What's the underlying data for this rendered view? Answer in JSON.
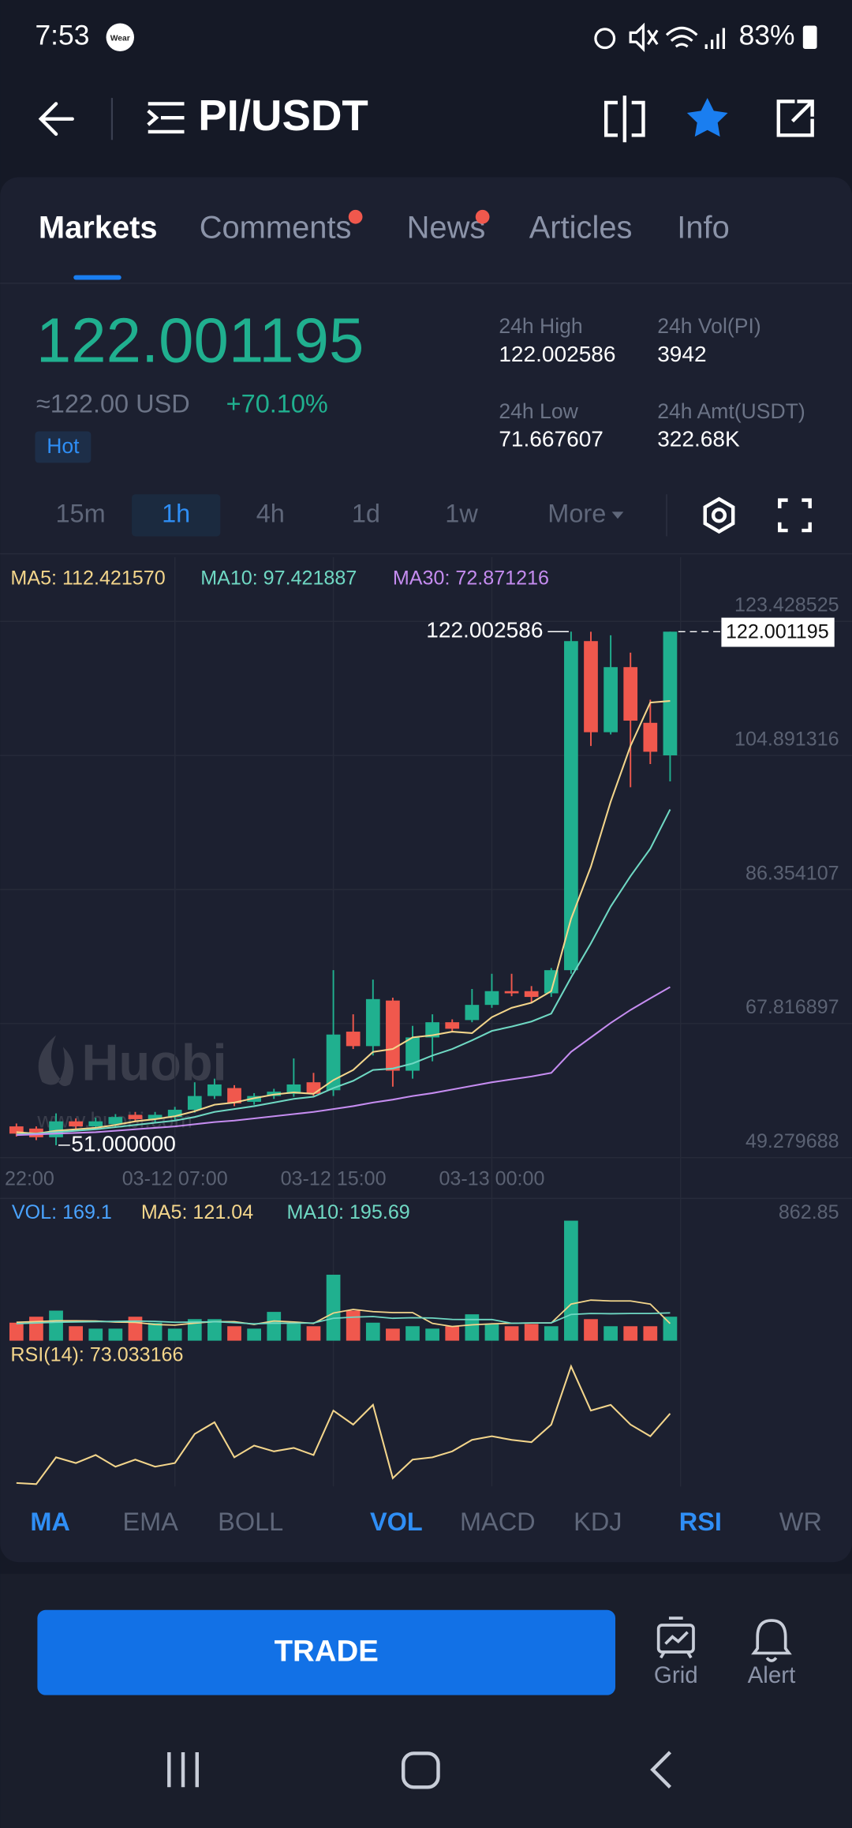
{
  "status_bar": {
    "time": "7:53",
    "badge": "Wear",
    "battery": "83%"
  },
  "header": {
    "pair": "PI/USDT"
  },
  "tabs": [
    "Markets",
    "Comments",
    "News",
    "Articles",
    "Info"
  ],
  "ticker": {
    "price": "122.001195",
    "usd": "≈122.00 USD",
    "change": "+70.10%",
    "tag": "Hot",
    "stats": [
      {
        "label": "24h High",
        "value": "122.002586"
      },
      {
        "label": "24h Vol(PI)",
        "value": "3942"
      },
      {
        "label": "24h Low",
        "value": "71.667607"
      },
      {
        "label": "24h Amt(USDT)",
        "value": "322.68K"
      }
    ]
  },
  "intervals": [
    "15m",
    "1h",
    "4h",
    "1d",
    "1w",
    "More"
  ],
  "watermark": {
    "brand": "Huobi",
    "site": "www.huobi.com"
  },
  "chart_data": {
    "type": "candlestick",
    "up_color": "#20b08f",
    "down_color": "#f0584d",
    "categories": [
      "22:00",
      null,
      null,
      null,
      null,
      null,
      null,
      null,
      "03-12 07:00",
      null,
      null,
      null,
      null,
      null,
      null,
      null,
      "03-12 15:00",
      null,
      null,
      null,
      null,
      null,
      null,
      null,
      "03-13 00:00",
      null,
      null,
      null,
      null,
      null,
      null,
      null,
      null,
      null
    ],
    "candles": {
      "open": [
        53.6,
        53.3,
        52.1,
        54.3,
        53.6,
        53.9,
        55.2,
        54.6,
        54.9,
        55.9,
        57.8,
        58.9,
        57.0,
        57.8,
        58.1,
        59.7,
        58.6,
        66.7,
        64.7,
        71.0,
        61.3,
        65.9,
        68.0,
        68.3,
        70.4,
        72.3,
        72.3,
        72.0,
        75.2,
        120.7,
        108.1,
        117.1,
        109.4,
        104.9
      ],
      "high": [
        54.0,
        53.6,
        55.4,
        54.7,
        54.8,
        55.3,
        55.6,
        55.6,
        56.3,
        59.7,
        60.2,
        59.3,
        58.2,
        58.8,
        63.0,
        61.0,
        75.2,
        69.1,
        73.9,
        71.4,
        67.5,
        69.1,
        68.4,
        72.6,
        74.7,
        74.7,
        73.0,
        75.5,
        122.002586,
        122.0,
        121.5,
        119.1,
        112.6,
        122.001195
      ],
      "low": [
        52.2,
        51.7,
        51.0,
        53.2,
        53.2,
        53.5,
        54.2,
        54.2,
        54.5,
        55.5,
        57.4,
        56.4,
        56.6,
        57.4,
        57.7,
        57.7,
        57.8,
        64.3,
        63.4,
        59.1,
        60.2,
        62.6,
        66.7,
        68.0,
        70.0,
        71.6,
        70.7,
        71.5,
        74.7,
        106.2,
        107.8,
        100.5,
        103.7,
        101.3
      ],
      "close": [
        52.6,
        52.1,
        54.3,
        53.6,
        54.3,
        54.9,
        54.6,
        55.2,
        55.9,
        57.8,
        59.4,
        56.8,
        57.8,
        58.4,
        59.4,
        58.1,
        66.3,
        64.7,
        71.2,
        61.3,
        65.9,
        68.0,
        67.1,
        70.4,
        72.3,
        72.0,
        71.5,
        75.2,
        120.7,
        108.1,
        117.1,
        109.7,
        105.4,
        122.001195
      ]
    },
    "low_value_label": "51.000000",
    "series": [
      {
        "name": "MA5",
        "legend": "MA5: 112.421570",
        "color": "#f3d58b",
        "values": [
          52.8,
          52.6,
          53.0,
          53.2,
          53.4,
          53.8,
          54.3,
          54.6,
          55.0,
          55.7,
          56.6,
          56.9,
          57.5,
          58.0,
          58.3,
          58.1,
          60.0,
          61.4,
          63.9,
          64.3,
          65.9,
          66.2,
          66.7,
          66.5,
          68.7,
          70.0,
          70.7,
          72.3,
          82.3,
          89.5,
          98.5,
          106.2,
          112.2,
          112.42157
        ]
      },
      {
        "name": "MA10",
        "legend": "MA10: 97.421887",
        "color": "#6fd8c3",
        "values": [
          52.5,
          52.6,
          52.8,
          53.0,
          53.2,
          53.5,
          53.8,
          54.1,
          54.4,
          54.9,
          55.6,
          56.0,
          56.4,
          56.9,
          57.4,
          57.7,
          58.9,
          59.9,
          61.4,
          61.6,
          62.3,
          63.4,
          64.3,
          65.5,
          66.8,
          67.4,
          68.1,
          69.2,
          74.2,
          78.9,
          84.0,
          88.2,
          92.0,
          97.421887
        ]
      },
      {
        "name": "MA30",
        "legend": "MA30: 72.871216",
        "color": "#c58cf0",
        "values": [
          52.4,
          52.5,
          52.6,
          52.7,
          52.8,
          53.0,
          53.2,
          53.4,
          53.6,
          53.9,
          54.2,
          54.4,
          54.7,
          55.0,
          55.3,
          55.6,
          56.0,
          56.4,
          56.9,
          57.3,
          57.8,
          58.2,
          58.7,
          59.2,
          59.7,
          60.1,
          60.5,
          61.0,
          63.9,
          65.9,
          67.9,
          69.7,
          71.3,
          72.871216
        ]
      }
    ],
    "ylim": [
      48.15,
      132.29
    ],
    "yticks": [
      123.428525,
      104.891316,
      86.354107,
      67.816897,
      49.279688
    ],
    "grid": true,
    "volume": {
      "legend": [
        "VOL: 169.1",
        "MA5: 121.04",
        "MA10: 195.69"
      ],
      "legend_colors": [
        "#4aa3ff",
        "#f3d58b",
        "#6fd8c3"
      ],
      "values": [
        127,
        169,
        212,
        102,
        85,
        85,
        169,
        127,
        85,
        152,
        152,
        102,
        85,
        203,
        118,
        102,
        465,
        212,
        127,
        85,
        102,
        85,
        102,
        186,
        118,
        102,
        118,
        102,
        846,
        152,
        102,
        102,
        102,
        169.1
      ],
      "ma5": [
        130,
        135,
        140,
        140,
        139,
        131,
        129,
        114,
        110,
        124,
        134,
        134,
        115,
        139,
        132,
        122,
        195,
        220,
        205,
        198,
        198,
        122,
        100,
        112,
        119,
        123,
        125,
        125,
        258,
        286,
        280,
        280,
        258,
        121.04
      ],
      "ma10": [
        120,
        125,
        130,
        132,
        134,
        136,
        138,
        136,
        130,
        131,
        134,
        127,
        119,
        124,
        123,
        125,
        158,
        166,
        170,
        158,
        162,
        160,
        150,
        149,
        149,
        123,
        125,
        126,
        185,
        192,
        190,
        192,
        192,
        195.69
      ],
      "ylim": [
        0,
        862.85
      ],
      "yticks": [
        862.85
      ]
    },
    "rsi": {
      "legend": "RSI(14): 73.033166",
      "color": "#f3d58b",
      "values": [
        36.8,
        36.2,
        50.2,
        47.2,
        51.4,
        45.3,
        49.0,
        45.3,
        47.2,
        62.4,
        68.5,
        50.2,
        56.3,
        53.3,
        55.1,
        51.4,
        74.6,
        67.3,
        77.6,
        39.3,
        49.0,
        50.2,
        53.3,
        59.3,
        61.2,
        59.3,
        58.1,
        67.3,
        97.7,
        74.6,
        77.6,
        67.3,
        61.2,
        73.033166
      ],
      "ylim": [
        35,
        105
      ]
    }
  },
  "indicator_tabs": [
    "MA",
    "EMA",
    "BOLL",
    "VOL",
    "MACD",
    "KDJ",
    "RSI",
    "WR"
  ],
  "active_indicators": [
    "MA",
    "VOL",
    "RSI"
  ],
  "active_interval": "1h",
  "bottom_bar": {
    "trade": "TRADE",
    "grid": "Grid",
    "alert": "Alert"
  }
}
